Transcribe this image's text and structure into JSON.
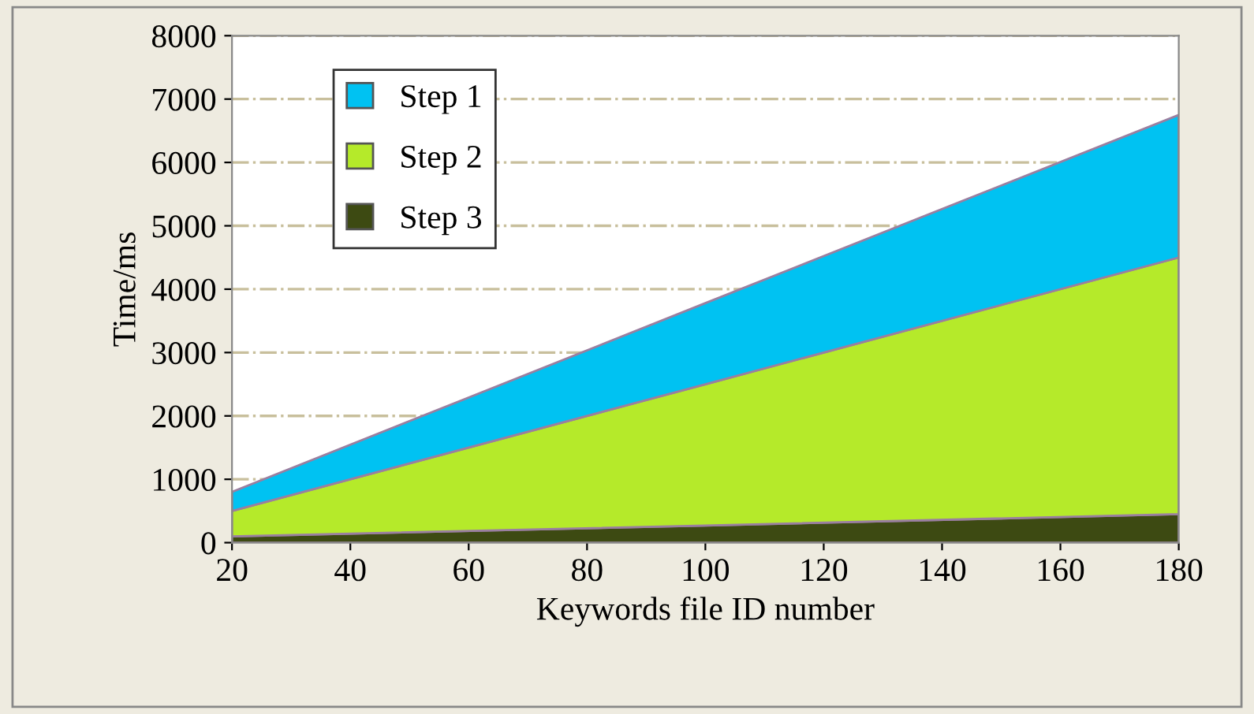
{
  "chart_data": {
    "type": "area",
    "stacked": true,
    "xlabel": "Keywords file ID number",
    "ylabel": "Time/ms",
    "x": [
      20,
      100,
      180
    ],
    "series": [
      {
        "name": "Step 3",
        "color": "#3d4a12",
        "values": [
          100,
          270,
          450
        ]
      },
      {
        "name": "Step 2",
        "color": "#b5ea2a",
        "values": [
          400,
          2230,
          4050
        ]
      },
      {
        "name": "Step 1",
        "color": "#00c2f2",
        "values": [
          300,
          1280,
          2250
        ]
      }
    ],
    "xlim": [
      20,
      180
    ],
    "xticks": [
      20,
      40,
      60,
      80,
      100,
      120,
      140,
      160,
      180
    ],
    "ylim": [
      0,
      8000
    ],
    "yticks": [
      0,
      1000,
      2000,
      3000,
      4000,
      5000,
      6000,
      7000,
      8000
    ],
    "grid": "y",
    "legend": "top left"
  }
}
